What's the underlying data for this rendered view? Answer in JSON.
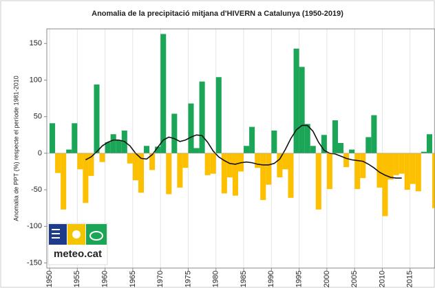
{
  "chart_data": {
    "type": "bar",
    "title": "Anomalia de la precipitació mitjana d'HIVERN a Catalunya (1950-2019)",
    "y_label": "Anomalia de PPT (%) respecte el període 1981-2010",
    "x": [
      1950,
      1951,
      1952,
      1953,
      1954,
      1955,
      1956,
      1957,
      1958,
      1959,
      1960,
      1961,
      1962,
      1963,
      1964,
      1965,
      1966,
      1967,
      1968,
      1969,
      1970,
      1971,
      1972,
      1973,
      1974,
      1975,
      1976,
      1977,
      1978,
      1979,
      1980,
      1981,
      1982,
      1983,
      1984,
      1985,
      1986,
      1987,
      1988,
      1989,
      1990,
      1991,
      1992,
      1993,
      1994,
      1995,
      1996,
      1997,
      1998,
      1999,
      2000,
      2001,
      2002,
      2003,
      2004,
      2005,
      2006,
      2007,
      2008,
      2009,
      2010,
      2011,
      2012,
      2013,
      2014,
      2015,
      2016,
      2017,
      2018,
      2019
    ],
    "values": [
      41,
      -27,
      -77,
      5,
      41,
      -22,
      -68,
      -31,
      94,
      -12,
      15,
      26,
      18,
      31,
      -14,
      -37,
      -54,
      10,
      -23,
      9,
      163,
      -56,
      54,
      -47,
      -20,
      68,
      7,
      98,
      -30,
      -28,
      104,
      -55,
      -33,
      -58,
      -25,
      10,
      36,
      -20,
      -64,
      -43,
      31,
      -33,
      -22,
      -61,
      143,
      118,
      40,
      10,
      -77,
      25,
      -49,
      45,
      14,
      -19,
      5,
      -49,
      -34,
      22,
      52,
      -47,
      -86,
      -36,
      -30,
      -28,
      -50,
      -42,
      -52,
      2,
      26,
      -75
    ],
    "trend": [
      null,
      null,
      null,
      null,
      null,
      null,
      -9,
      -5,
      2,
      10,
      15,
      18,
      18,
      16,
      10,
      0,
      -7,
      -8,
      -2,
      8,
      18,
      22,
      20,
      16,
      18,
      22,
      25,
      24,
      15,
      3,
      -5,
      -10,
      -14,
      -15,
      -13,
      -12,
      -13,
      -15,
      -16,
      -16,
      -14,
      -8,
      5,
      20,
      32,
      38,
      38,
      30,
      15,
      4,
      0,
      -1,
      -4,
      -7,
      -9,
      -10,
      -11,
      -15,
      -20,
      -26,
      -30,
      -33,
      -34,
      -34,
      null,
      null,
      null,
      null,
      null,
      null
    ],
    "positive_color": "#1aa557",
    "negative_color": "#fcc000",
    "trend_color": "#111111",
    "xlim": [
      1949.5,
      2019.5
    ],
    "xticks": [
      1950,
      1955,
      1960,
      1965,
      1970,
      1975,
      1980,
      1985,
      1990,
      1995,
      2000,
      2005,
      2010,
      2015
    ],
    "ylim": [
      -157,
      170
    ],
    "yticks": [
      -150,
      -100,
      -50,
      0,
      50,
      100,
      150
    ],
    "grid": true
  },
  "logo": {
    "text": "meteo.cat"
  }
}
